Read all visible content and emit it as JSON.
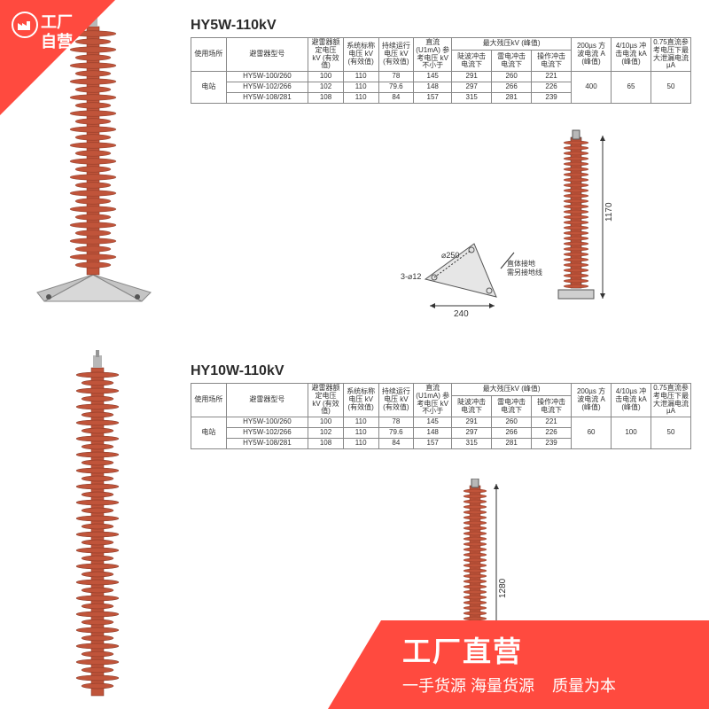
{
  "badge_top": {
    "line1": "工厂",
    "line2": "自营"
  },
  "bottom_bar": {
    "big": "工厂直营",
    "small": "一手货源 海量货源",
    "right": "质量为本"
  },
  "watermark": "",
  "arrester_color": "#c0543a",
  "metal_color": "#b8b8b8",
  "section1": {
    "title": "HY5W-110kV",
    "table": {
      "head_top": [
        "使用场所",
        "避雷器型号",
        "避雷器额定电压 kV (有效值)",
        "系统标称电压 kV (有效值)",
        "持续运行电压 kV (有效值)",
        "直流 (U1mA) 参考电压 kV不小于",
        "最大残压kV (峰值)",
        "200µs 方波电流 A (峰值)",
        "4/10µs 冲击电流 kA (峰值)",
        "0.75直流参考电压下最大泄漏电流µA"
      ],
      "sub": [
        "陡波冲击电流下",
        "雷电冲击电流下",
        "操作冲击电流下"
      ],
      "rows": [
        [
          "电站",
          "HY5W-100/260",
          "100",
          "110",
          "78",
          "145",
          "291",
          "260",
          "221",
          "400",
          "65",
          "50"
        ],
        [
          "",
          "HY5W-102/266",
          "102",
          "110",
          "79.6",
          "148",
          "297",
          "266",
          "226",
          "",
          "",
          ""
        ],
        [
          "",
          "HY5W-108/281",
          "108",
          "110",
          "84",
          "157",
          "315",
          "281",
          "239",
          "",
          "",
          ""
        ]
      ]
    },
    "dims": {
      "height": "1170",
      "base_w": "240",
      "base_d": "250",
      "bolt": "3-⌀12",
      "note": "直体接地需另接地线"
    }
  },
  "section2": {
    "title": "HY10W-110kV",
    "table": {
      "head_top": [
        "使用场所",
        "避雷器型号",
        "避雷器额定电压 kV (有效值)",
        "系统标称电压 kV (有效值)",
        "持续运行电压 kV (有效值)",
        "直流 (U1mA) 参考电压 kV不小于",
        "最大残压kV (峰值)",
        "200µs 方波电流 A (峰值)",
        "4/10µs 冲击电流 kA (峰值)",
        "0.75直流参考电压下最大泄漏电流µA"
      ],
      "sub": [
        "陡波冲击电流下",
        "雷电冲击电流下",
        "操作冲击电流下"
      ],
      "rows": [
        [
          "电站",
          "HY5W-100/260",
          "100",
          "110",
          "78",
          "145",
          "291",
          "260",
          "221",
          "60",
          "100",
          "50"
        ],
        [
          "",
          "HY5W-102/266",
          "102",
          "110",
          "79.6",
          "148",
          "297",
          "266",
          "226",
          "",
          "",
          ""
        ],
        [
          "",
          "HY5W-108/281",
          "108",
          "110",
          "84",
          "157",
          "315",
          "281",
          "239",
          "",
          "",
          ""
        ]
      ]
    },
    "dims": {
      "height": "1280"
    }
  }
}
